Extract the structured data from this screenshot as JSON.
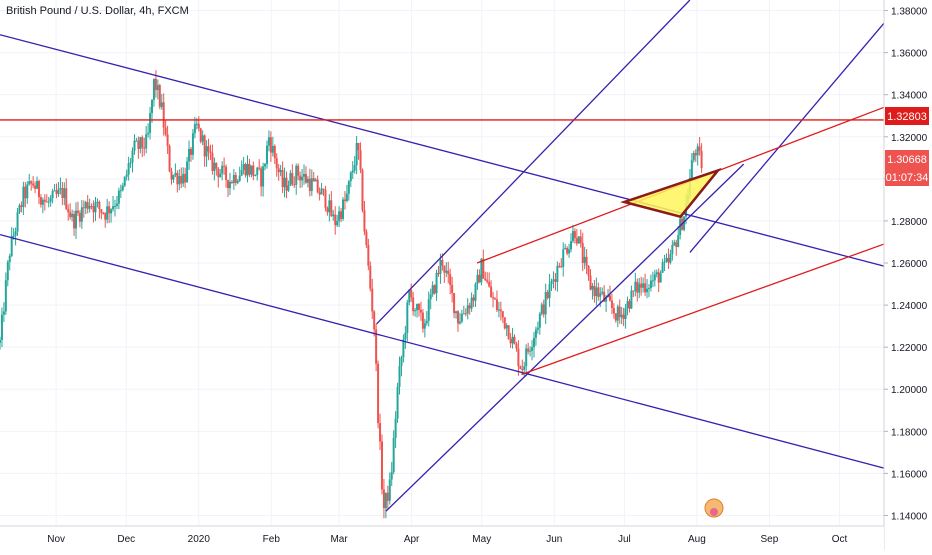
{
  "header": {
    "title": "British Pound / U.S. Dollar, 4h, FXCM"
  },
  "price_labels": {
    "resistance": "1.32803",
    "last_price": "1.30668",
    "countdown": "01:07:34"
  },
  "colors": {
    "candle_up": "#26a69a",
    "candle_down": "#ef5350",
    "channel": "#3a1fb0",
    "trend": "#e01b1b",
    "triangle_fill": "#fff45c",
    "triangle_stroke": "#8b1a1a",
    "axis_text": "#131722"
  },
  "chart_data": {
    "type": "candlestick",
    "title": "British Pound / U.S. Dollar, 4h, FXCM",
    "xlabel": "",
    "ylabel": "",
    "ylim": [
      1.135,
      1.385
    ],
    "xlim": [
      "2019-10-08",
      "2020-10-20"
    ],
    "y_ticks": [
      "1.14000",
      "1.16000",
      "1.18000",
      "1.20000",
      "1.22000",
      "1.24000",
      "1.26000",
      "1.28000",
      "1.30000",
      "1.32000",
      "1.34000",
      "1.36000",
      "1.38000"
    ],
    "x_ticks": [
      {
        "date": "2019-11-01",
        "label": "Nov"
      },
      {
        "date": "2019-12-01",
        "label": "Dec"
      },
      {
        "date": "2020-01-01",
        "label": "2020"
      },
      {
        "date": "2020-02-01",
        "label": "Feb"
      },
      {
        "date": "2020-03-01",
        "label": "Mar"
      },
      {
        "date": "2020-04-01",
        "label": "Apr"
      },
      {
        "date": "2020-05-01",
        "label": "May"
      },
      {
        "date": "2020-06-01",
        "label": "Jun"
      },
      {
        "date": "2020-07-01",
        "label": "Jul"
      },
      {
        "date": "2020-08-01",
        "label": "Aug"
      },
      {
        "date": "2020-09-01",
        "label": "Sep"
      },
      {
        "date": "2020-10-01",
        "label": "Oct"
      }
    ],
    "price_path": [
      [
        "2019-10-08",
        1.222
      ],
      [
        "2019-10-12",
        1.265
      ],
      [
        "2019-10-18",
        1.292
      ],
      [
        "2019-10-22",
        1.298
      ],
      [
        "2019-10-28",
        1.288
      ],
      [
        "2019-11-04",
        1.294
      ],
      [
        "2019-11-08",
        1.28
      ],
      [
        "2019-11-15",
        1.289
      ],
      [
        "2019-11-22",
        1.284
      ],
      [
        "2019-11-29",
        1.293
      ],
      [
        "2019-12-04",
        1.314
      ],
      [
        "2019-12-10",
        1.317
      ],
      [
        "2019-12-13",
        1.347
      ],
      [
        "2019-12-16",
        1.334
      ],
      [
        "2019-12-20",
        1.302
      ],
      [
        "2019-12-26",
        1.301
      ],
      [
        "2019-12-31",
        1.325
      ],
      [
        "2020-01-06",
        1.308
      ],
      [
        "2020-01-14",
        1.299
      ],
      [
        "2020-01-21",
        1.306
      ],
      [
        "2020-01-28",
        1.3
      ],
      [
        "2020-01-31",
        1.32
      ],
      [
        "2020-02-06",
        1.296
      ],
      [
        "2020-02-12",
        1.303
      ],
      [
        "2020-02-18",
        1.298
      ],
      [
        "2020-02-24",
        1.291
      ],
      [
        "2020-02-28",
        1.279
      ],
      [
        "2020-03-04",
        1.29
      ],
      [
        "2020-03-09",
        1.316
      ],
      [
        "2020-03-12",
        1.274
      ],
      [
        "2020-03-16",
        1.23
      ],
      [
        "2020-03-18",
        1.18
      ],
      [
        "2020-03-20",
        1.143
      ],
      [
        "2020-03-23",
        1.155
      ],
      [
        "2020-03-26",
        1.2
      ],
      [
        "2020-03-31",
        1.245
      ],
      [
        "2020-04-06",
        1.23
      ],
      [
        "2020-04-14",
        1.262
      ],
      [
        "2020-04-21",
        1.233
      ],
      [
        "2020-04-28",
        1.245
      ],
      [
        "2020-05-01",
        1.259
      ],
      [
        "2020-05-05",
        1.244
      ],
      [
        "2020-05-12",
        1.23
      ],
      [
        "2020-05-18",
        1.21
      ],
      [
        "2020-05-26",
        1.235
      ],
      [
        "2020-06-03",
        1.26
      ],
      [
        "2020-06-10",
        1.276
      ],
      [
        "2020-06-16",
        1.25
      ],
      [
        "2020-06-22",
        1.243
      ],
      [
        "2020-06-29",
        1.234
      ],
      [
        "2020-07-06",
        1.248
      ],
      [
        "2020-07-14",
        1.252
      ],
      [
        "2020-07-20",
        1.26
      ],
      [
        "2020-07-27",
        1.285
      ],
      [
        "2020-07-31",
        1.315
      ],
      [
        "2020-08-03",
        1.307
      ]
    ],
    "lines": [
      {
        "name": "upper-channel-line",
        "kind": "channel",
        "from": [
          "2019-10-08",
          1.3685
        ],
        "to": [
          "2020-10-20",
          1.2585
        ]
      },
      {
        "name": "lower-channel-line",
        "kind": "channel",
        "from": [
          "2019-10-08",
          1.2735
        ],
        "to": [
          "2020-10-20",
          1.1625
        ]
      },
      {
        "name": "rising-channel-lower-line",
        "kind": "channel",
        "from": [
          "2020-03-21",
          1.142
        ],
        "to": [
          "2020-08-21",
          1.307
        ]
      },
      {
        "name": "rising-channel-upper-line",
        "kind": "channel",
        "from": [
          "2020-03-17",
          1.231
        ],
        "to": [
          "2020-07-29",
          1.385
        ]
      },
      {
        "name": "rising-channel-middle-line",
        "kind": "channel",
        "from": [
          "2020-07-29",
          1.265
        ],
        "to": [
          "2020-10-20",
          1.374
        ]
      },
      {
        "name": "upper-trend-line",
        "kind": "trend",
        "from": [
          "2020-04-29",
          1.26
        ],
        "to": [
          "2020-10-20",
          1.334
        ]
      },
      {
        "name": "lower-trend-line",
        "kind": "trend",
        "from": [
          "2020-05-18",
          1.207
        ],
        "to": [
          "2020-10-20",
          1.269
        ]
      },
      {
        "name": "resistance-line",
        "kind": "trend",
        "from": [
          "2019-10-08",
          1.328
        ],
        "to": [
          "2020-10-20",
          1.328
        ]
      }
    ],
    "pattern_triangle": [
      [
        "2020-07-01",
        1.289
      ],
      [
        "2020-07-25",
        1.282
      ],
      [
        "2020-08-10",
        1.304
      ]
    ]
  }
}
